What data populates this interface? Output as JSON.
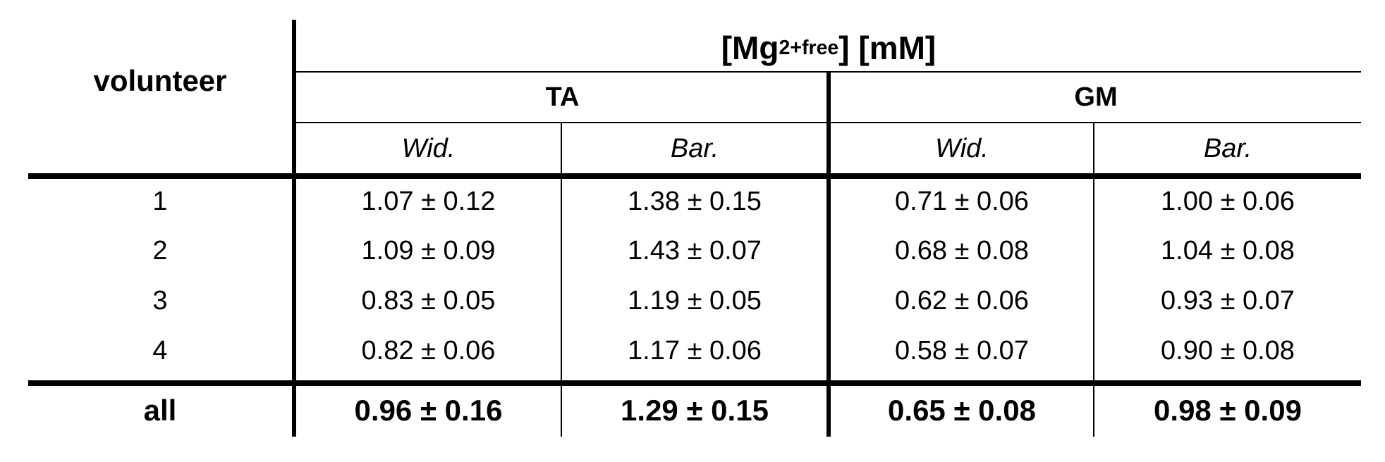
{
  "table": {
    "row_header": "volunteer",
    "group_header": {
      "prefix": "[Mg",
      "superscript": "2+",
      "subscript": "free",
      "suffix": "] [mM]"
    },
    "muscles": [
      "TA",
      "GM"
    ],
    "methods": [
      "Wid.",
      "Bar.",
      "Wid.",
      "Bar."
    ],
    "rows": [
      {
        "label": "1",
        "values": [
          "1.07 ± 0.12",
          "1.38 ± 0.15",
          "0.71 ± 0.06",
          "1.00 ± 0.06"
        ]
      },
      {
        "label": "2",
        "values": [
          "1.09 ± 0.09",
          "1.43 ± 0.07",
          "0.68 ± 0.08",
          "1.04 ± 0.08"
        ]
      },
      {
        "label": "3",
        "values": [
          "0.83 ± 0.05",
          "1.19 ± 0.05",
          "0.62 ± 0.06",
          "0.93 ± 0.07"
        ]
      },
      {
        "label": "4",
        "values": [
          "0.82 ± 0.06",
          "1.17 ± 0.06",
          "0.58 ± 0.07",
          "0.90 ± 0.08"
        ]
      }
    ],
    "summary": {
      "label": "all",
      "values": [
        "0.96 ± 0.16",
        "1.29 ± 0.15",
        "0.65 ± 0.08",
        "0.98 ± 0.09"
      ]
    }
  }
}
